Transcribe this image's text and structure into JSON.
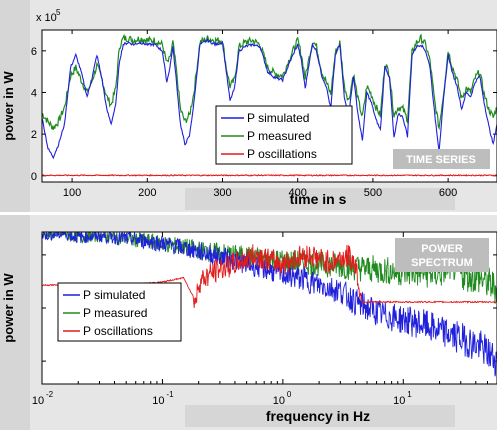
{
  "colors": {
    "simulated": "#1f1fdc",
    "measured": "#1f8a1f",
    "oscillations": "#e31b1b",
    "panel_bg": "#e6e6e6",
    "label_bg": "#d6d6d6",
    "tag_bg": "#bdbdbd"
  },
  "chart_data": [
    {
      "type": "line",
      "title": "",
      "tag": "TIME SERIES",
      "xlabel": "time in s",
      "ylabel": "power in W",
      "y_exponent_label": "x 10",
      "y_exponent_power": "5",
      "xlim": [
        60,
        665
      ],
      "ylim": [
        -0.3,
        7
      ],
      "x_ticks": [
        100,
        200,
        300,
        400,
        500,
        600
      ],
      "x_tick_labels": [
        "100",
        "200",
        "300",
        "400",
        "500",
        "600"
      ],
      "y_ticks": [
        0,
        2,
        4,
        6
      ],
      "y_tick_labels": [
        "0",
        "2",
        "4",
        "6"
      ],
      "legend": [
        "P simulated",
        "P measured",
        "P oscillations"
      ],
      "legend_position": "center",
      "series": [
        {
          "name": "P simulated",
          "x": [
            60,
            68,
            75,
            82,
            90,
            98,
            105,
            112,
            120,
            126,
            133,
            140,
            146,
            152,
            158,
            163,
            168,
            175,
            182,
            190,
            200,
            210,
            220,
            226,
            230,
            234,
            238,
            244,
            250,
            256,
            262,
            270,
            280,
            290,
            300,
            305,
            310,
            316,
            322,
            330,
            340,
            350,
            360,
            370,
            380,
            390,
            400,
            405,
            410,
            416,
            420,
            425,
            432,
            438,
            444,
            450,
            456,
            462,
            468,
            474,
            480,
            486,
            492,
            498,
            504,
            510,
            516,
            522,
            528,
            534,
            540,
            546,
            552,
            558,
            564,
            570,
            576,
            582,
            588,
            594,
            600,
            606,
            612,
            618,
            624,
            630,
            636,
            642,
            648,
            654,
            660,
            665
          ],
          "y": [
            2.8,
            1.3,
            0.9,
            1.5,
            2.5,
            5.2,
            5.8,
            5.0,
            3.8,
            4.6,
            5.8,
            4.6,
            3.2,
            2.5,
            3.4,
            5.5,
            6.3,
            6.4,
            6.3,
            6.4,
            6.3,
            6.3,
            6.0,
            4.5,
            5.2,
            6.2,
            4.8,
            2.5,
            1.5,
            1.9,
            3.5,
            6.3,
            6.5,
            6.3,
            6.4,
            5.0,
            3.6,
            4.2,
            6.0,
            6.2,
            6.3,
            6.2,
            5.0,
            4.7,
            4.6,
            5.5,
            6.3,
            5.5,
            4.2,
            5.6,
            6.3,
            6.0,
            4.8,
            4.3,
            3.2,
            5.8,
            6.3,
            3.8,
            2.9,
            4.8,
            3.0,
            1.7,
            4.0,
            3.5,
            2.7,
            2.2,
            5.3,
            4.7,
            1.8,
            3.0,
            2.8,
            1.9,
            5.8,
            6.2,
            6.3,
            6.0,
            5.2,
            3.0,
            1.2,
            3.7,
            5.8,
            4.9,
            4.3,
            3.2,
            4.0,
            3.8,
            4.5,
            4.8,
            3.5,
            2.4,
            1.5,
            2.5
          ]
        },
        {
          "name": "P measured",
          "x": [
            60,
            68,
            75,
            82,
            90,
            98,
            105,
            112,
            120,
            126,
            133,
            140,
            146,
            152,
            158,
            163,
            168,
            175,
            182,
            190,
            200,
            210,
            220,
            226,
            230,
            234,
            238,
            244,
            250,
            256,
            262,
            270,
            280,
            290,
            300,
            305,
            310,
            316,
            322,
            330,
            340,
            350,
            360,
            370,
            380,
            390,
            400,
            405,
            410,
            416,
            420,
            425,
            432,
            438,
            444,
            450,
            456,
            462,
            468,
            474,
            480,
            486,
            492,
            498,
            504,
            510,
            516,
            522,
            528,
            534,
            540,
            546,
            552,
            558,
            564,
            570,
            576,
            582,
            588,
            594,
            600,
            606,
            612,
            618,
            624,
            630,
            636,
            642,
            648,
            654,
            660,
            665
          ],
          "y": [
            3.0,
            2.6,
            2.3,
            2.6,
            3.3,
            4.8,
            5.2,
            4.6,
            4.0,
            4.5,
            5.3,
            4.6,
            3.8,
            3.4,
            4.2,
            6.2,
            6.6,
            6.6,
            6.5,
            6.6,
            6.5,
            6.5,
            6.3,
            5.4,
            5.6,
            6.4,
            5.3,
            3.2,
            2.6,
            2.9,
            4.0,
            6.4,
            6.6,
            6.5,
            6.5,
            5.2,
            4.3,
            4.6,
            6.2,
            6.4,
            6.5,
            6.3,
            5.2,
            4.9,
            4.8,
            5.7,
            6.5,
            5.8,
            4.7,
            5.8,
            6.5,
            6.2,
            5.0,
            4.5,
            3.9,
            5.9,
            6.4,
            4.3,
            3.6,
            4.9,
            3.7,
            2.8,
            4.3,
            3.9,
            3.3,
            2.9,
            5.4,
            4.9,
            2.9,
            3.3,
            3.2,
            2.7,
            5.9,
            6.4,
            6.6,
            6.3,
            5.5,
            3.6,
            2.3,
            4.0,
            6.0,
            5.2,
            4.6,
            3.7,
            4.2,
            4.0,
            4.7,
            5.0,
            3.9,
            3.2,
            2.8,
            3.3
          ]
        },
        {
          "name": "P oscillations",
          "x": [
            60,
            665
          ],
          "y": [
            0.02,
            0.02
          ]
        }
      ]
    },
    {
      "type": "line",
      "title": "",
      "tag_lines": [
        "POWER",
        "SPECTRUM"
      ],
      "xlabel": "frequency in Hz",
      "ylabel": "power in W",
      "x_scale": "log",
      "xlim": [
        0.01,
        60
      ],
      "x_ticks": [
        0.01,
        0.1,
        1,
        10
      ],
      "x_tick_bases": [
        "10",
        "10",
        "10",
        "10"
      ],
      "x_tick_exponents": [
        "-2",
        "-1",
        "0",
        "1"
      ],
      "y_scale": "log",
      "legend": [
        "P simulated",
        "P measured",
        "P oscillations"
      ],
      "legend_position": "left",
      "note": "",
      "series": [
        {
          "name": "P simulated",
          "x": [
            0.01,
            0.015,
            0.02,
            0.03,
            0.05,
            0.08,
            0.1,
            0.15,
            0.2,
            0.3,
            0.5,
            0.7,
            1.0,
            1.5,
            2.0,
            3.0,
            4.0,
            5.0,
            7.0,
            10,
            15,
            20,
            30,
            45,
            60
          ],
          "y": [
            0.9,
            0.95,
            0.85,
            0.9,
            0.82,
            0.75,
            0.7,
            0.62,
            0.55,
            0.48,
            0.38,
            0.33,
            0.28,
            0.24,
            0.2,
            0.17,
            0.12,
            0.1,
            0.08,
            0.07,
            0.06,
            0.05,
            0.04,
            0.03,
            0.02
          ]
        },
        {
          "name": "P measured",
          "x": [
            0.01,
            0.015,
            0.02,
            0.03,
            0.05,
            0.08,
            0.1,
            0.15,
            0.2,
            0.3,
            0.5,
            0.7,
            1.0,
            1.5,
            2.0,
            3.0,
            4.0,
            5.0,
            7.0,
            10,
            15,
            20,
            25,
            30,
            45,
            60
          ],
          "y": [
            0.92,
            0.96,
            0.86,
            0.9,
            0.82,
            0.75,
            0.7,
            0.64,
            0.58,
            0.53,
            0.48,
            0.44,
            0.42,
            0.4,
            0.38,
            0.36,
            0.34,
            0.33,
            0.31,
            0.3,
            0.29,
            0.28,
            0.38,
            0.28,
            0.24,
            0.18
          ]
        },
        {
          "name": "P oscillations",
          "x": [
            0.01,
            0.02,
            0.05,
            0.1,
            0.15,
            0.19,
            0.2,
            0.25,
            0.3,
            0.4,
            0.5,
            0.6,
            0.8,
            1.0,
            1.3,
            1.7,
            2.0,
            2.5,
            3.0,
            3.5,
            4.0,
            4.5,
            6.0,
            10,
            20,
            40,
            60
          ],
          "y": [
            0.2,
            0.2,
            0.2,
            0.22,
            0.25,
            0.12,
            0.22,
            0.28,
            0.33,
            0.38,
            0.45,
            0.5,
            0.42,
            0.38,
            0.46,
            0.5,
            0.44,
            0.4,
            0.45,
            0.48,
            0.38,
            0.12,
            0.12,
            0.12,
            0.12,
            0.12,
            0.12
          ]
        }
      ]
    }
  ]
}
